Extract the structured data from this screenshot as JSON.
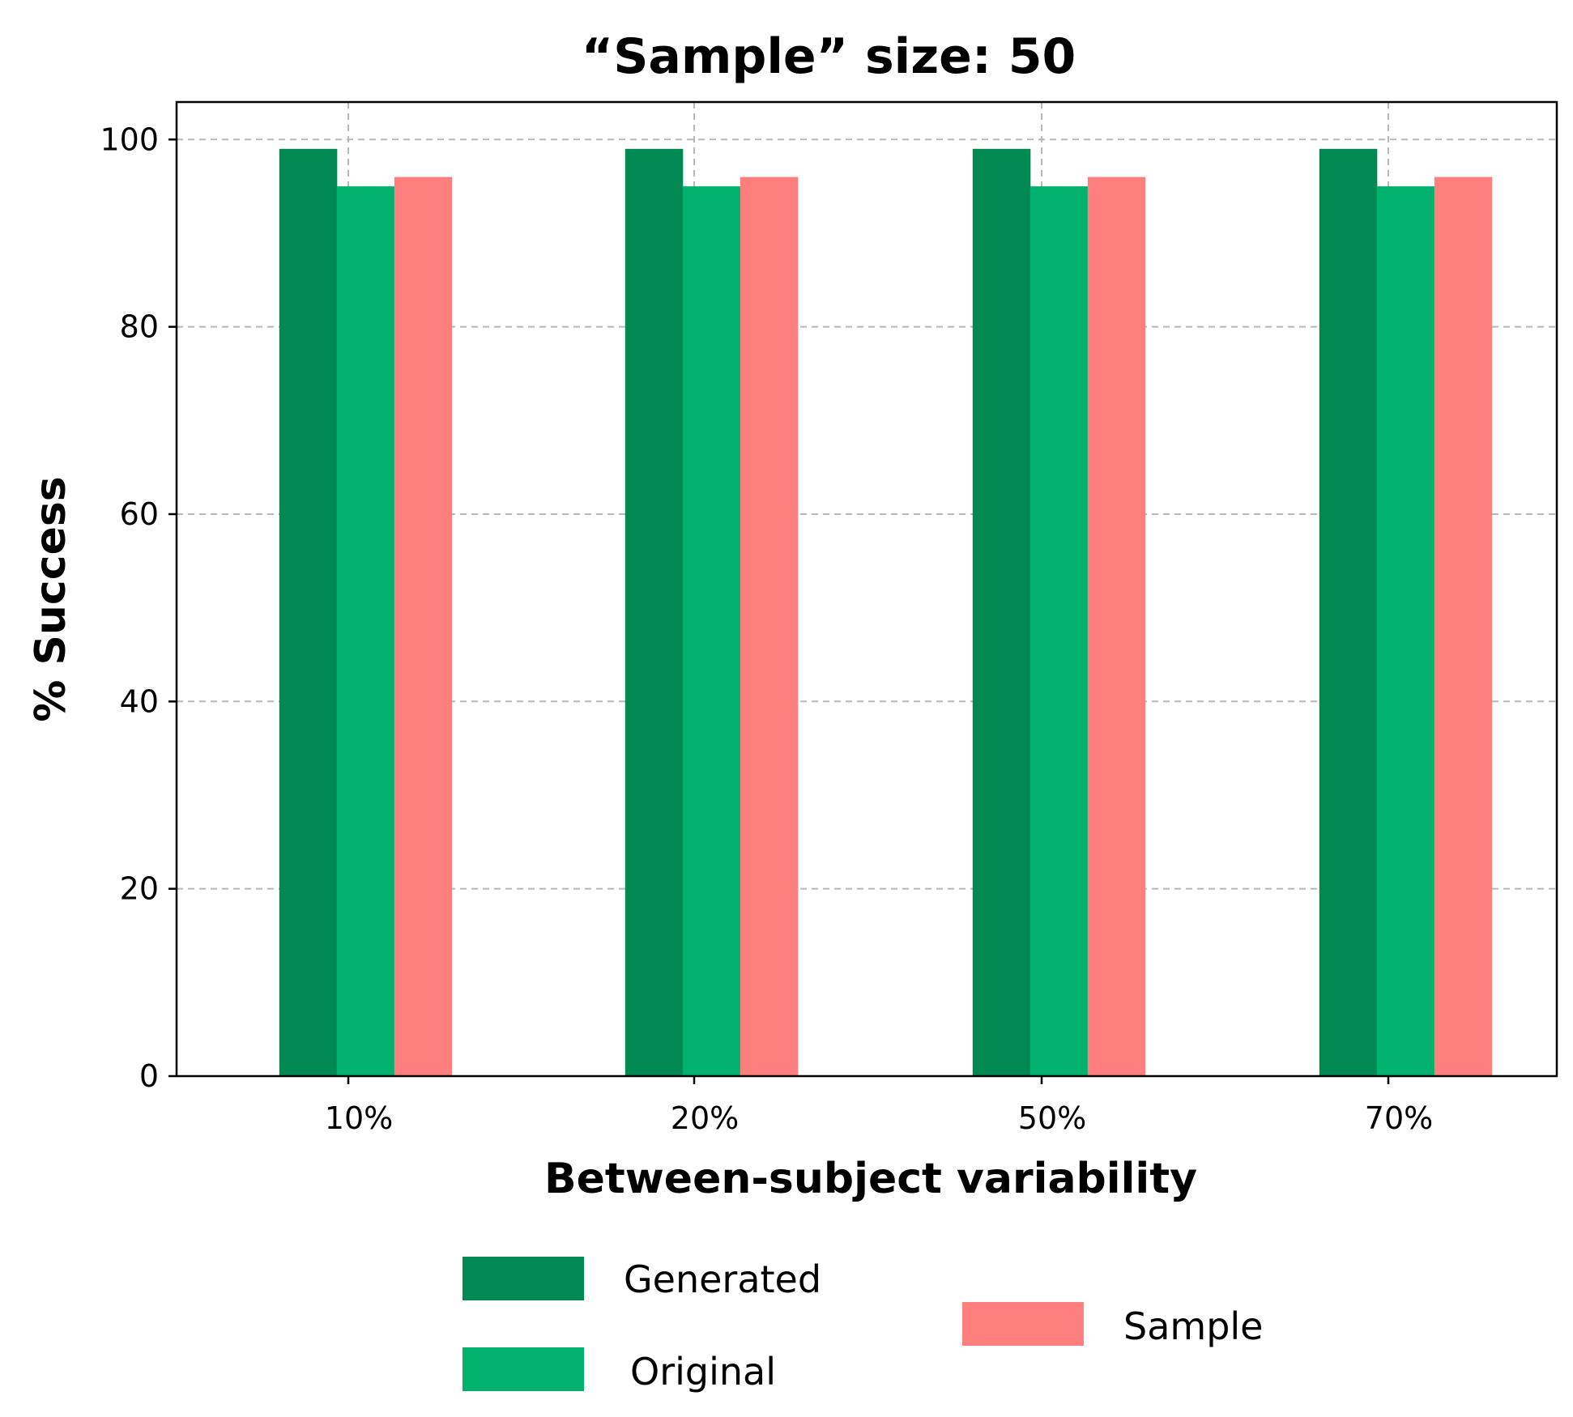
{
  "chart_data": {
    "type": "bar",
    "title": "“Sample” size: 50",
    "xlabel": "Between-subject variability",
    "ylabel": "% Success",
    "categories": [
      "10%",
      "20%",
      "50%",
      "70%"
    ],
    "series": [
      {
        "name": "Generated",
        "color": "#008a52",
        "values": [
          99,
          99,
          99,
          99
        ]
      },
      {
        "name": "Original",
        "color": "#00b26e",
        "values": [
          95,
          95,
          95,
          95
        ]
      },
      {
        "name": "Sample",
        "color": "#ff7f7f",
        "values": [
          96,
          96,
          96,
          96
        ]
      }
    ],
    "ylim": [
      0,
      104
    ],
    "yticks": [
      0,
      20,
      40,
      60,
      80,
      100
    ],
    "grid": true,
    "legend_position": "below"
  }
}
